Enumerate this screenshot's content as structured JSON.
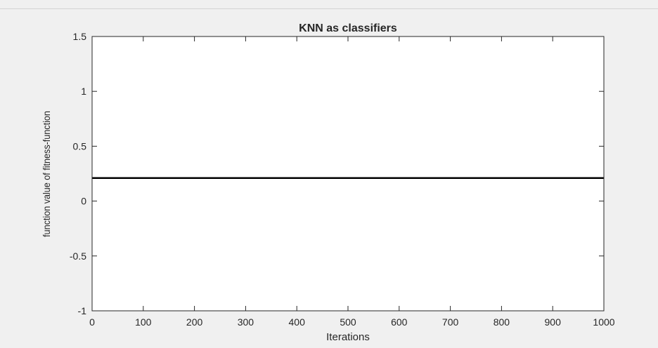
{
  "chart_data": {
    "type": "line",
    "title": "KNN as classifiers",
    "xlabel": "Iterations",
    "ylabel": "function value of fitness-function",
    "xlim": [
      0,
      1000
    ],
    "ylim": [
      -1,
      1.5
    ],
    "xticks": [
      0,
      100,
      200,
      300,
      400,
      500,
      600,
      700,
      800,
      900,
      1000
    ],
    "yticks": [
      -1,
      -0.5,
      0,
      0.5,
      1,
      1.5
    ],
    "grid": false,
    "series": [
      {
        "x": [
          0,
          1000
        ],
        "y": [
          0.21,
          0.21
        ],
        "color": "#000000"
      }
    ]
  },
  "colors": {
    "figure_background": "#f0f0f0",
    "axes_background": "#ffffff",
    "axes_color": "#262626",
    "line_color": "#000000"
  }
}
